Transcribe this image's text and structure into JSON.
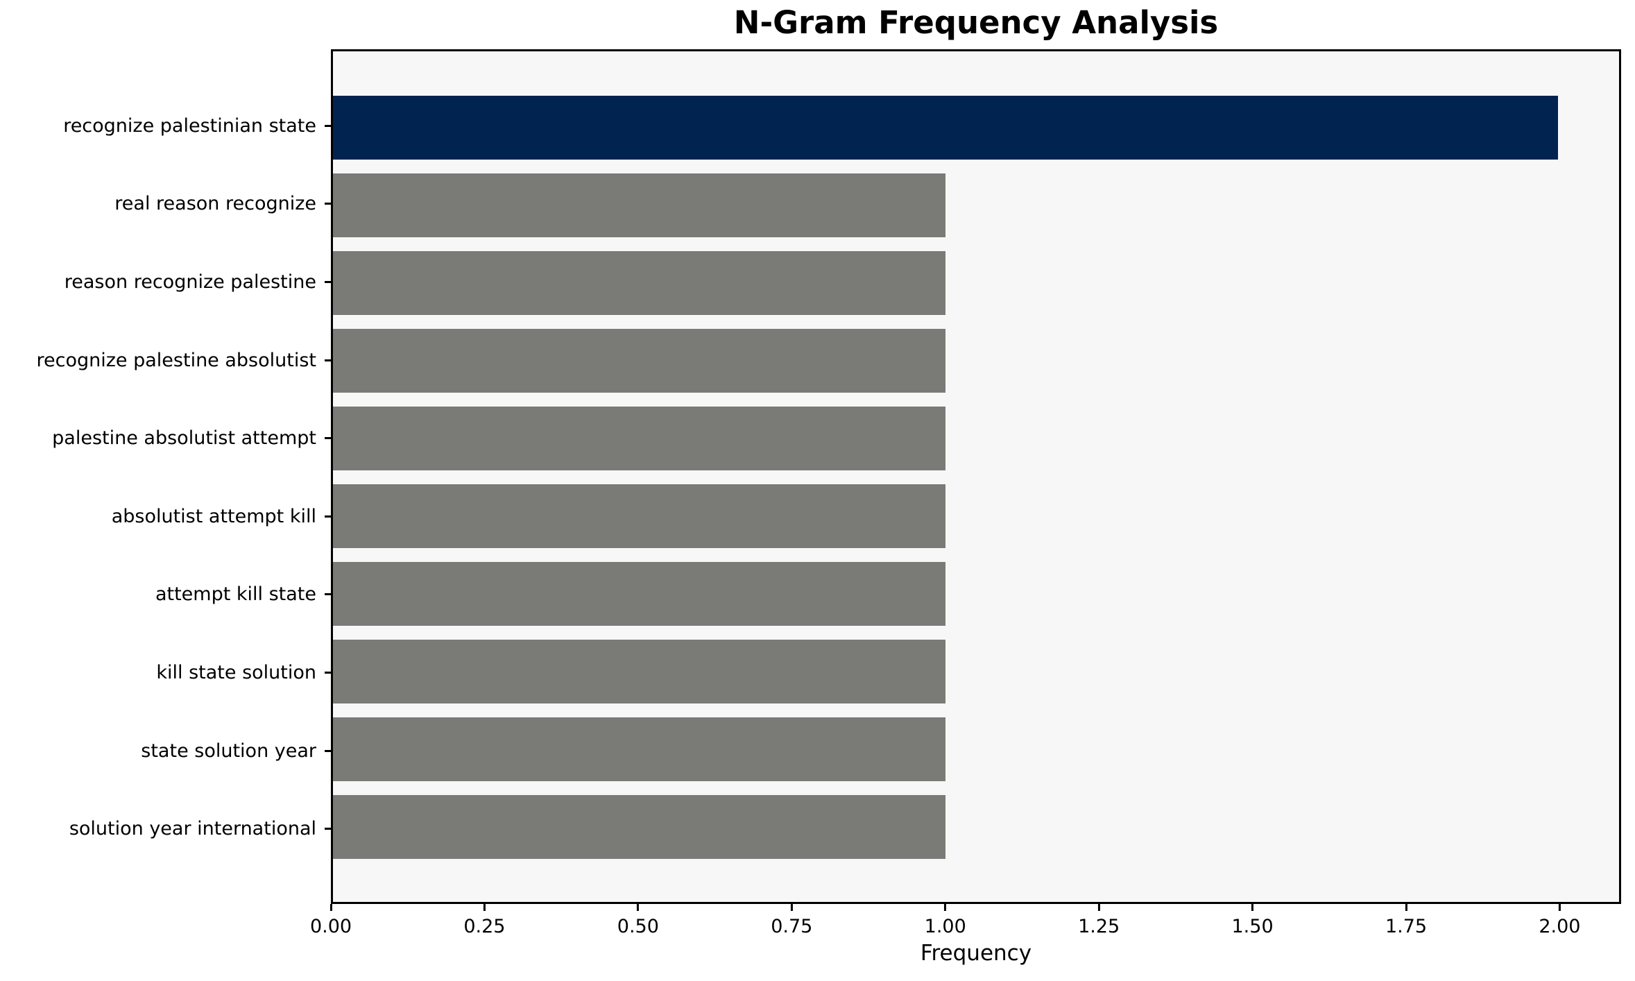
{
  "chart_data": {
    "type": "bar",
    "orientation": "horizontal",
    "title": "N-Gram Frequency Analysis",
    "xlabel": "Frequency",
    "ylabel": "",
    "categories": [
      "recognize palestinian state",
      "real reason recognize",
      "reason recognize palestine",
      "recognize palestine absolutist",
      "palestine absolutist attempt",
      "absolutist attempt kill",
      "attempt kill state",
      "kill state solution",
      "state solution year",
      "solution year international"
    ],
    "values": [
      2,
      1,
      1,
      1,
      1,
      1,
      1,
      1,
      1,
      1
    ],
    "xlim": [
      0,
      2.1
    ],
    "xticks": [
      "0.00",
      "0.25",
      "0.50",
      "0.75",
      "1.00",
      "1.25",
      "1.50",
      "1.75",
      "2.00"
    ],
    "grid": false,
    "legend": null,
    "colors": {
      "highlight_bar": "#002350",
      "default_bar": "#7a7a76",
      "plot_background": "#f7f7f7",
      "figure_background": "#ffffff",
      "axis": "#000000"
    },
    "series_colors": [
      "#002350",
      "#7a7a76",
      "#7a7a76",
      "#7a7a76",
      "#7a7a76",
      "#7a7a76",
      "#7a7a76",
      "#7a7a76",
      "#7a7a76",
      "#7a7a76"
    ]
  }
}
